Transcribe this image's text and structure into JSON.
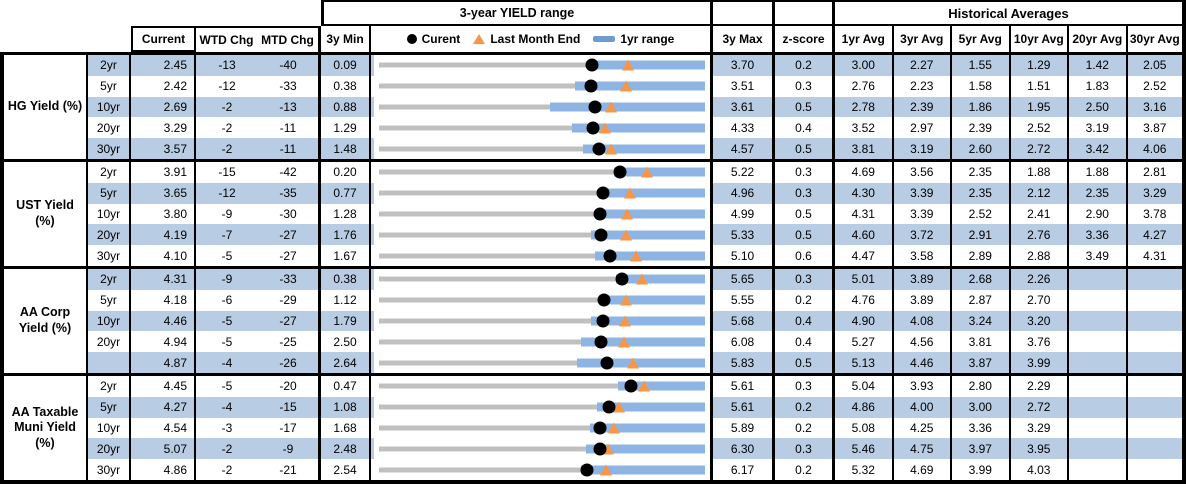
{
  "header": {
    "yield_range_title": "3-year YIELD range",
    "historical_title": "Historical Averages",
    "col_current": "Current",
    "col_wtd_chg": "WTD Chg",
    "col_mtd_chg": "MTD Chg",
    "col_3y_min": "3y Min",
    "col_3y_max": "3y Max",
    "col_z_score": "z-score",
    "avg_cols": [
      "1yr Avg",
      "3yr Avg",
      "5yr Avg",
      "10yr Avg",
      "20yr Avg",
      "30yr Avg"
    ],
    "legend": {
      "current_label": "Curent",
      "last_month_end_label": "Last Month End",
      "range_1yr_label": "1yr range"
    }
  },
  "colors": {
    "stripe_blue": "#b8cce4",
    "range_bar_blue": "#8db4e2",
    "last_month_end_orange": "#f79646",
    "gray_3y_line": "#c0c0c0",
    "border_black": "#000000"
  },
  "chart_data": {
    "type": "table",
    "description": "Yield table with inline 3-year range charts: gray line = 3y min..max, blue bar = 1yr range, black dot = current, orange triangle = last month end. All yields in percent, changes in bps.",
    "sections": [
      {
        "label": "HG Yield (%)",
        "rows": [
          {
            "tenor": "2yr",
            "current": "2.45",
            "wtd_chg": "-13",
            "mtd_chg": "-40",
            "min_3y": "0.09",
            "max_3y": "3.70",
            "z_score": "0.2",
            "historical_avgs": [
              "3.00",
              "2.27",
              "1.55",
              "1.29",
              "1.42",
              "2.05"
            ],
            "last_month_end": 2.85,
            "range_1yr": [
              2.4,
              3.7
            ]
          },
          {
            "tenor": "5yr",
            "current": "2.42",
            "wtd_chg": "-12",
            "mtd_chg": "-33",
            "min_3y": "0.38",
            "max_3y": "3.51",
            "z_score": "0.3",
            "historical_avgs": [
              "2.76",
              "2.23",
              "1.58",
              "1.51",
              "1.83",
              "2.52"
            ],
            "last_month_end": 2.75,
            "range_1yr": [
              2.26,
              3.51
            ]
          },
          {
            "tenor": "10yr",
            "current": "2.69",
            "wtd_chg": "-2",
            "mtd_chg": "-13",
            "min_3y": "0.88",
            "max_3y": "3.61",
            "z_score": "0.5",
            "historical_avgs": [
              "2.78",
              "2.39",
              "1.86",
              "1.95",
              "2.50",
              "3.16"
            ],
            "last_month_end": 2.82,
            "range_1yr": [
              2.31,
              3.61
            ]
          },
          {
            "tenor": "20yr",
            "current": "3.29",
            "wtd_chg": "-2",
            "mtd_chg": "-11",
            "min_3y": "1.29",
            "max_3y": "4.33",
            "z_score": "0.4",
            "historical_avgs": [
              "3.52",
              "2.97",
              "2.39",
              "2.52",
              "3.19",
              "3.87"
            ],
            "last_month_end": 3.4,
            "range_1yr": [
              3.09,
              4.33
            ]
          },
          {
            "tenor": "30yr",
            "current": "3.57",
            "wtd_chg": "-2",
            "mtd_chg": "-11",
            "min_3y": "1.48",
            "max_3y": "4.57",
            "z_score": "0.5",
            "historical_avgs": [
              "3.81",
              "3.19",
              "2.60",
              "2.72",
              "3.42",
              "4.06"
            ],
            "last_month_end": 3.68,
            "range_1yr": [
              3.41,
              4.57
            ]
          }
        ]
      },
      {
        "label": "UST Yield (%)",
        "rows": [
          {
            "tenor": "2yr",
            "current": "3.91",
            "wtd_chg": "-15",
            "mtd_chg": "-42",
            "min_3y": "0.20",
            "max_3y": "5.22",
            "z_score": "0.3",
            "historical_avgs": [
              "4.69",
              "3.56",
              "2.35",
              "1.88",
              "1.88",
              "2.81"
            ],
            "last_month_end": 4.33,
            "range_1yr": [
              3.82,
              5.22
            ]
          },
          {
            "tenor": "5yr",
            "current": "3.65",
            "wtd_chg": "-12",
            "mtd_chg": "-35",
            "min_3y": "0.77",
            "max_3y": "4.96",
            "z_score": "0.3",
            "historical_avgs": [
              "4.30",
              "3.39",
              "2.35",
              "2.12",
              "2.35",
              "3.29"
            ],
            "last_month_end": 4.0,
            "range_1yr": [
              3.61,
              4.96
            ]
          },
          {
            "tenor": "10yr",
            "current": "3.80",
            "wtd_chg": "-9",
            "mtd_chg": "-30",
            "min_3y": "1.28",
            "max_3y": "4.99",
            "z_score": "0.5",
            "historical_avgs": [
              "4.31",
              "3.39",
              "2.52",
              "2.41",
              "2.90",
              "3.78"
            ],
            "last_month_end": 4.1,
            "range_1yr": [
              3.78,
              4.99
            ]
          },
          {
            "tenor": "20yr",
            "current": "4.19",
            "wtd_chg": "-7",
            "mtd_chg": "-27",
            "min_3y": "1.76",
            "max_3y": "5.33",
            "z_score": "0.5",
            "historical_avgs": [
              "4.60",
              "3.72",
              "2.91",
              "2.76",
              "3.36",
              "4.27"
            ],
            "last_month_end": 4.46,
            "range_1yr": [
              4.08,
              5.33
            ]
          },
          {
            "tenor": "30yr",
            "current": "4.10",
            "wtd_chg": "-5",
            "mtd_chg": "-27",
            "min_3y": "1.67",
            "max_3y": "5.10",
            "z_score": "0.6",
            "historical_avgs": [
              "4.47",
              "3.58",
              "2.89",
              "2.88",
              "3.49",
              "4.31"
            ],
            "last_month_end": 4.37,
            "range_1yr": [
              3.94,
              5.1
            ]
          }
        ]
      },
      {
        "label": "AA Corp Yield (%)",
        "rows": [
          {
            "tenor": "2yr",
            "current": "4.31",
            "wtd_chg": "-9",
            "mtd_chg": "-33",
            "min_3y": "0.38",
            "max_3y": "5.65",
            "z_score": "0.3",
            "historical_avgs": [
              "5.01",
              "3.89",
              "2.68",
              "2.26",
              "",
              ""
            ],
            "last_month_end": 4.64,
            "range_1yr": [
              4.21,
              5.65
            ]
          },
          {
            "tenor": "5yr",
            "current": "4.18",
            "wtd_chg": "-6",
            "mtd_chg": "-29",
            "min_3y": "1.12",
            "max_3y": "5.55",
            "z_score": "0.2",
            "historical_avgs": [
              "4.76",
              "3.89",
              "2.87",
              "2.70",
              "",
              ""
            ],
            "last_month_end": 4.47,
            "range_1yr": [
              4.12,
              5.55
            ]
          },
          {
            "tenor": "10yr",
            "current": "4.46",
            "wtd_chg": "-5",
            "mtd_chg": "-27",
            "min_3y": "1.79",
            "max_3y": "5.68",
            "z_score": "0.4",
            "historical_avgs": [
              "4.90",
              "4.08",
              "3.24",
              "3.20",
              "",
              ""
            ],
            "last_month_end": 4.73,
            "range_1yr": [
              4.32,
              5.68
            ]
          },
          {
            "tenor": "20yr",
            "current": "4.94",
            "wtd_chg": "-5",
            "mtd_chg": "-25",
            "min_3y": "2.50",
            "max_3y": "6.08",
            "z_score": "0.4",
            "historical_avgs": [
              "5.27",
              "4.56",
              "3.81",
              "3.76",
              "",
              ""
            ],
            "last_month_end": 5.19,
            "range_1yr": [
              4.72,
              6.08
            ]
          },
          {
            "tenor": "",
            "current": "4.87",
            "wtd_chg": "-4",
            "mtd_chg": "-26",
            "min_3y": "2.64",
            "max_3y": "5.83",
            "z_score": "0.5",
            "historical_avgs": [
              "5.13",
              "4.46",
              "3.87",
              "3.99",
              "",
              ""
            ],
            "last_month_end": 5.13,
            "range_1yr": [
              4.58,
              5.83
            ]
          }
        ]
      },
      {
        "label": "AA Taxable Muni Yield (%)",
        "rows": [
          {
            "tenor": "2yr",
            "current": "4.45",
            "wtd_chg": "-5",
            "mtd_chg": "-20",
            "min_3y": "0.47",
            "max_3y": "5.61",
            "z_score": "0.3",
            "historical_avgs": [
              "5.04",
              "3.93",
              "2.80",
              "2.29",
              "",
              ""
            ],
            "last_month_end": 4.65,
            "range_1yr": [
              4.24,
              5.61
            ]
          },
          {
            "tenor": "5yr",
            "current": "4.27",
            "wtd_chg": "-4",
            "mtd_chg": "-15",
            "min_3y": "1.08",
            "max_3y": "5.61",
            "z_score": "0.2",
            "historical_avgs": [
              "4.86",
              "4.00",
              "3.00",
              "2.72",
              "",
              ""
            ],
            "last_month_end": 4.42,
            "range_1yr": [
              4.11,
              5.61
            ]
          },
          {
            "tenor": "10yr",
            "current": "4.54",
            "wtd_chg": "-3",
            "mtd_chg": "-17",
            "min_3y": "1.68",
            "max_3y": "5.89",
            "z_score": "0.2",
            "historical_avgs": [
              "5.08",
              "4.25",
              "3.36",
              "3.29",
              "",
              ""
            ],
            "last_month_end": 4.71,
            "range_1yr": [
              4.4,
              5.89
            ]
          },
          {
            "tenor": "20yr",
            "current": "5.07",
            "wtd_chg": "-2",
            "mtd_chg": "-9",
            "min_3y": "2.48",
            "max_3y": "6.30",
            "z_score": "0.3",
            "historical_avgs": [
              "5.46",
              "4.75",
              "3.97",
              "3.95",
              "",
              ""
            ],
            "last_month_end": 5.16,
            "range_1yr": [
              4.91,
              6.3
            ]
          },
          {
            "tenor": "30yr",
            "current": "4.86",
            "wtd_chg": "-2",
            "mtd_chg": "-21",
            "min_3y": "2.54",
            "max_3y": "6.17",
            "z_score": "0.2",
            "historical_avgs": [
              "5.32",
              "4.69",
              "3.99",
              "4.03",
              "",
              ""
            ],
            "last_month_end": 5.07,
            "range_1yr": [
              4.79,
              6.17
            ]
          }
        ]
      }
    ]
  }
}
